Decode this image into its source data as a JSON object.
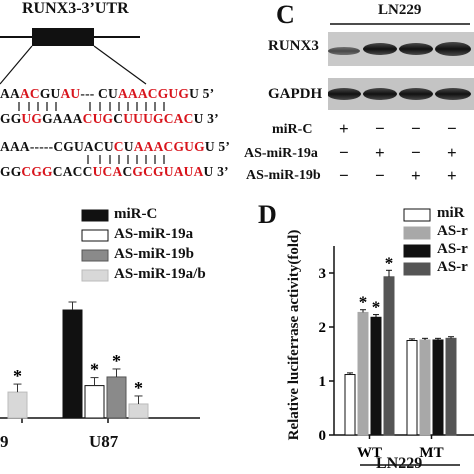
{
  "panel_a": {
    "gene_label": "RUNX3-3’UTR",
    "sequences": [
      {
        "segments": [
          [
            "AA",
            0
          ],
          [
            "AC",
            1
          ],
          [
            "GU",
            0
          ],
          [
            "AU",
            1
          ],
          [
            "--- CU",
            0
          ],
          [
            "AAACGUG",
            1
          ],
          [
            "U",
            0
          ],
          [
            "   5’",
            0
          ]
        ]
      },
      {
        "segments": [
          [
            "GG",
            0
          ],
          [
            "UG",
            1
          ],
          [
            "GAAA",
            0
          ],
          [
            "CUG",
            1
          ],
          [
            "C",
            0
          ],
          [
            "UUUGCAC",
            1
          ],
          [
            "U",
            0
          ],
          [
            "   3’",
            0
          ]
        ]
      },
      {
        "segments": [
          [
            "AAA-----CGUACU",
            0
          ],
          [
            "C",
            1
          ],
          [
            "U",
            0
          ],
          [
            "AAACGUG",
            1
          ],
          [
            "U",
            0
          ],
          [
            "   5’",
            0
          ]
        ]
      },
      {
        "segments": [
          [
            "GG",
            0
          ],
          [
            "CGG",
            1
          ],
          [
            "CACC",
            0
          ],
          [
            "UCA",
            1
          ],
          [
            "C",
            0
          ],
          [
            "GCGUAUA",
            1
          ],
          [
            "U",
            0
          ],
          [
            "   3’",
            0
          ]
        ]
      }
    ]
  },
  "panel_b": {
    "legend": [
      "miR-C",
      "AS-miR-19a",
      "AS-miR-19b",
      "AS-miR-19a/b"
    ],
    "x_labels": [
      "9",
      "U87"
    ]
  },
  "panel_c": {
    "letter": "C",
    "cell_line": "LN229",
    "bands": [
      "RUNX3",
      "GAPDH"
    ],
    "rows": [
      {
        "label": "miR-C",
        "marks": [
          "+",
          "−",
          "−",
          "−"
        ]
      },
      {
        "label": "AS-miR-19a",
        "marks": [
          "−",
          "+",
          "−",
          "+"
        ]
      },
      {
        "label": "AS-miR-19b",
        "marks": [
          "−",
          "−",
          "+",
          "+"
        ]
      }
    ]
  },
  "panel_d": {
    "letter": "D",
    "ylabel": "Relative luciferrase activity(fold)",
    "ytick_labels": [
      "0",
      "1",
      "2",
      "3"
    ],
    "categories": [
      "WT",
      "MT"
    ],
    "cell_line": "LN229",
    "legend": [
      "miR",
      "AS-r",
      "AS-r",
      "AS-r"
    ]
  },
  "colors": {
    "miR_C": "#ffffff",
    "AS_miR_19a": "#a8a8a8",
    "AS_miR_19b": "#111111",
    "AS_miR_19ab": "#555555",
    "red_nt": "#d8141c"
  },
  "chart_data": [
    {
      "type": "bar",
      "xlabel": "",
      "ylabel": "",
      "categories": [
        "9",
        "U87"
      ],
      "series": [
        {
          "name": "miR-C",
          "values": [
            null,
            1.0
          ]
        },
        {
          "name": "AS-miR-19a",
          "values": [
            null,
            0.3
          ]
        },
        {
          "name": "AS-miR-19b",
          "values": [
            null,
            0.38
          ]
        },
        {
          "name": "AS-miR-19a/b",
          "values": [
            0.24,
            0.13
          ]
        }
      ],
      "significance": [
        {
          "category": "9",
          "series": "AS-miR-19a/b",
          "mark": "*"
        },
        {
          "category": "U87",
          "series": "AS-miR-19a",
          "mark": "*"
        },
        {
          "category": "U87",
          "series": "AS-miR-19b",
          "mark": "*"
        },
        {
          "category": "U87",
          "series": "AS-miR-19a/b",
          "mark": "*"
        }
      ]
    },
    {
      "type": "bar",
      "ylabel": "Relative luciferrase activity(fold)",
      "ylim": [
        0,
        3.5
      ],
      "yticks": [
        0,
        1,
        2,
        3
      ],
      "categories": [
        "WT",
        "MT"
      ],
      "series": [
        {
          "name": "miR-C",
          "values": [
            1.12,
            1.75
          ],
          "errors": [
            0.03,
            0.03
          ]
        },
        {
          "name": "AS-miR-19a",
          "values": [
            2.27,
            1.76
          ],
          "errors": [
            0.05,
            0.03
          ]
        },
        {
          "name": "AS-miR-19b",
          "values": [
            2.18,
            1.76
          ],
          "errors": [
            0.05,
            0.03
          ]
        },
        {
          "name": "AS-miR-19a/b",
          "values": [
            2.93,
            1.79
          ],
          "errors": [
            0.12,
            0.03
          ]
        }
      ],
      "significance": [
        {
          "category": "WT",
          "series": "AS-miR-19a",
          "mark": "*"
        },
        {
          "category": "WT",
          "series": "AS-miR-19b",
          "mark": "*"
        },
        {
          "category": "WT",
          "series": "AS-miR-19a/b",
          "mark": "*"
        }
      ]
    }
  ]
}
